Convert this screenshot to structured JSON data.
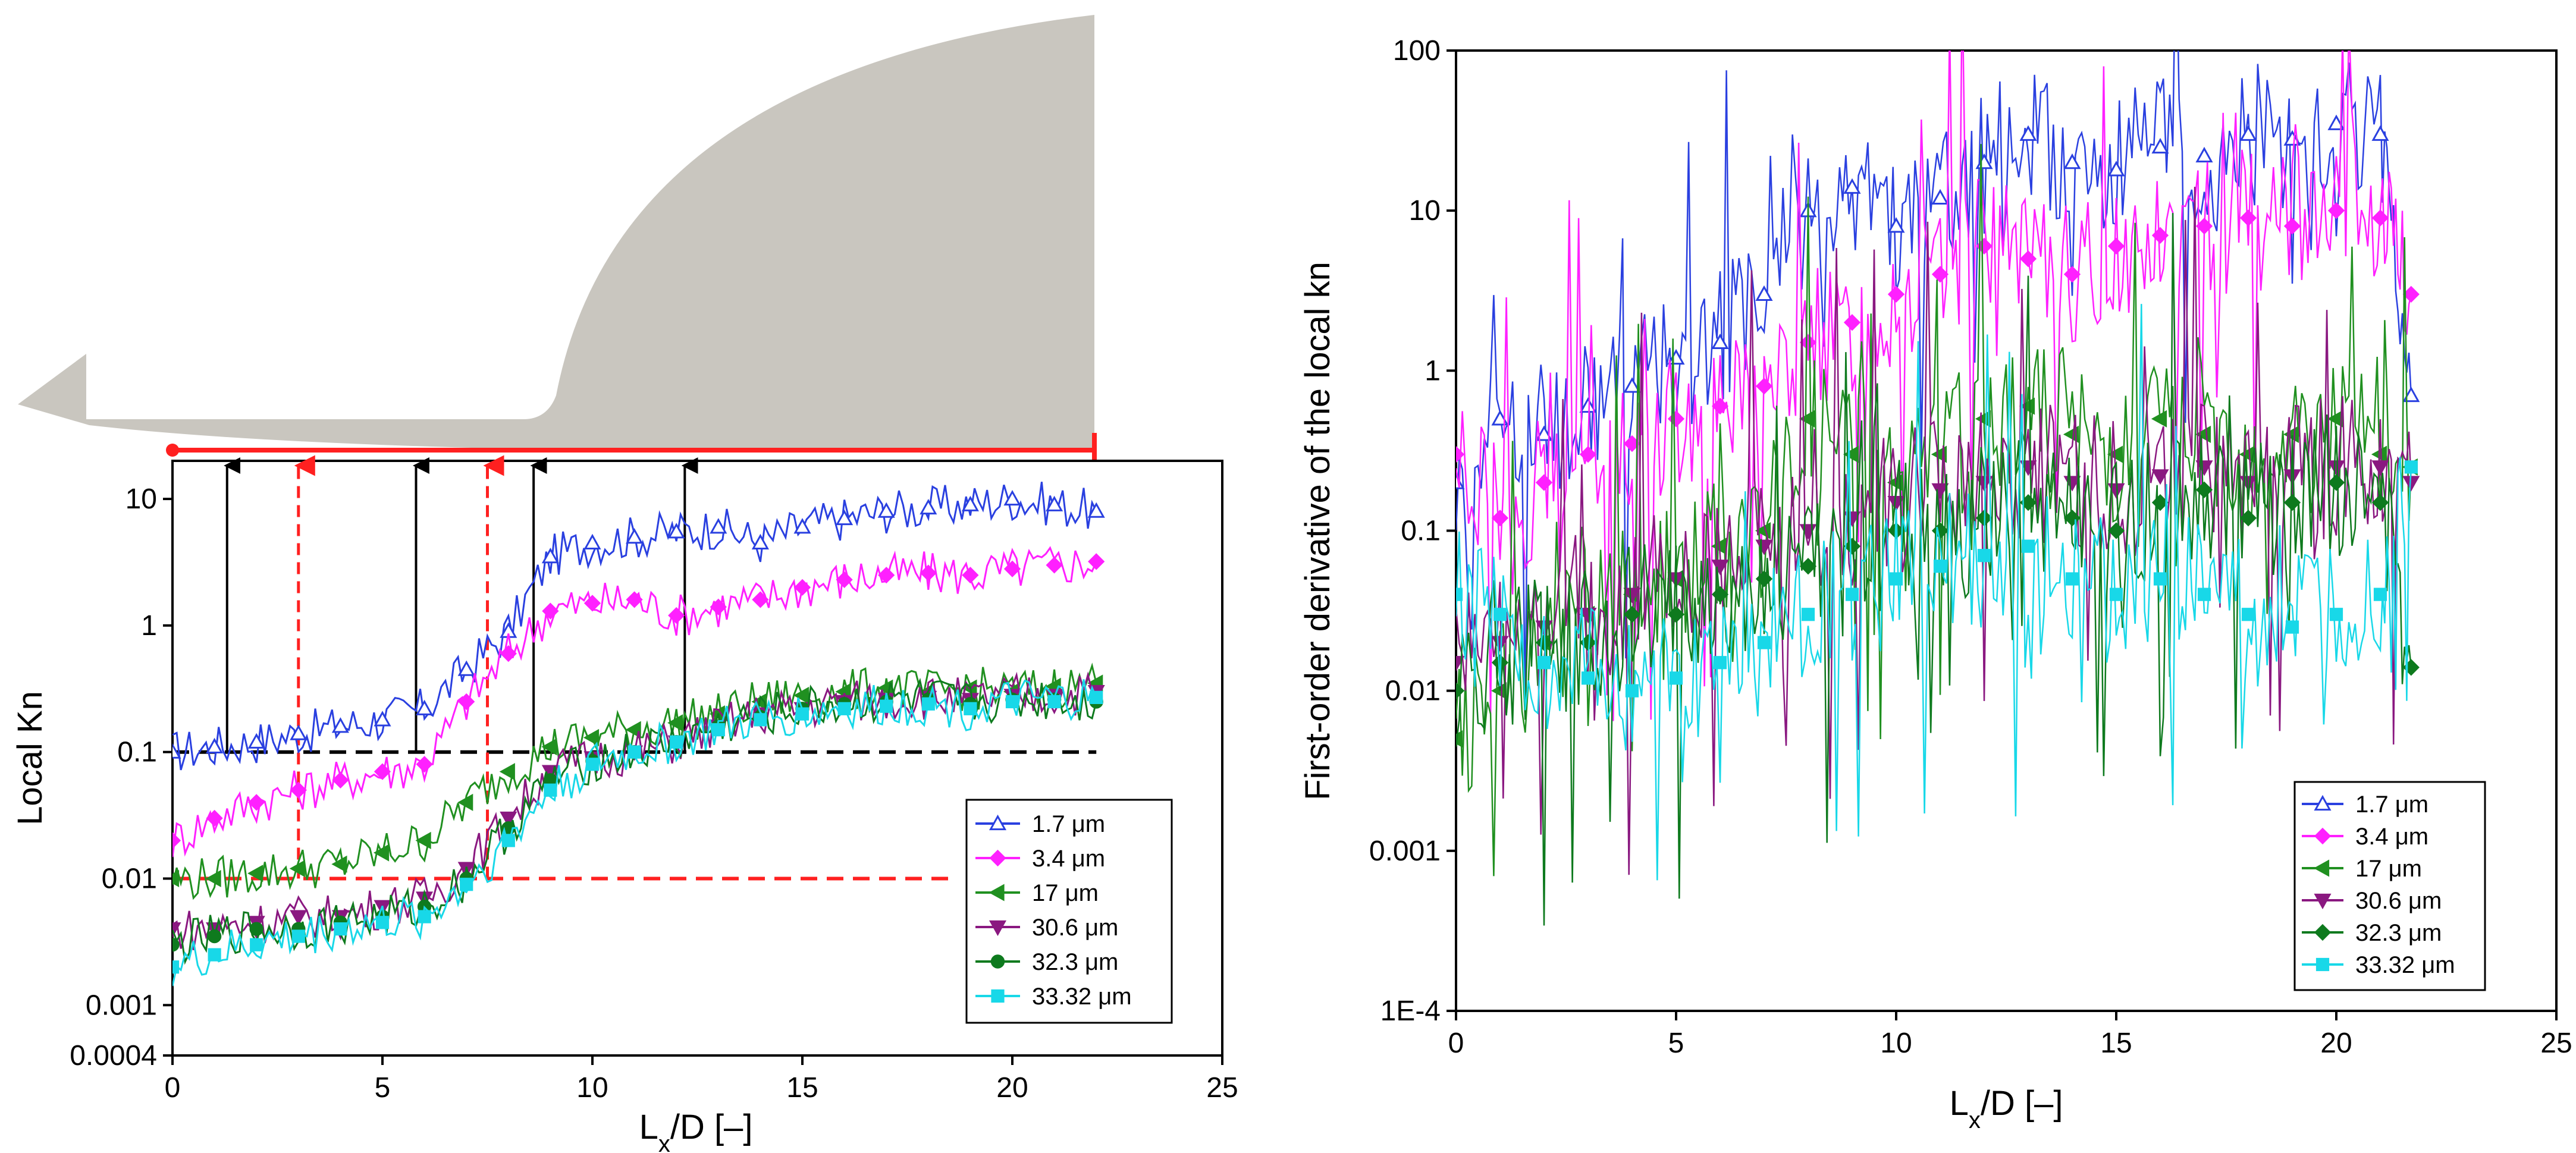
{
  "chart_data": [
    {
      "type": "line",
      "panel": "left",
      "title": "",
      "xlabel_main": "L",
      "xlabel_sub": "x",
      "xlabel_rest": "/D [–]",
      "ylabel": "Local Kn",
      "yscale": "log",
      "xlim": [
        0,
        25
      ],
      "ylim": [
        0.0004,
        20
      ],
      "xticks": [
        "0",
        "5",
        "10",
        "15",
        "20",
        "25"
      ],
      "yticks": [
        "0.0004",
        "0.001",
        "0.01",
        "0.1",
        "1",
        "10"
      ],
      "ytick_values": [
        0.0004,
        0.001,
        0.01,
        0.1,
        1,
        10
      ],
      "reference_lines": [
        {
          "y": 0.1,
          "x0": 0,
          "x1": 22,
          "color": "#000000"
        },
        {
          "y": 0.01,
          "x0": 0,
          "x1": 18.5,
          "color": "#ff2020"
        }
      ],
      "arrows": [
        {
          "x": 1.3,
          "color": "#000000"
        },
        {
          "x": 3.0,
          "color": "#ff2020"
        },
        {
          "x": 5.8,
          "color": "#000000"
        },
        {
          "x": 7.5,
          "color": "#ff2020"
        },
        {
          "x": 8.6,
          "color": "#000000"
        },
        {
          "x": 12.2,
          "color": "#000000"
        }
      ],
      "legend_position": "bottom-right",
      "series": [
        {
          "name": "1.7 μm",
          "color": "#2a40e0",
          "marker": "triangle-up-open",
          "x": [
            0,
            1,
            2,
            3,
            4,
            5,
            6,
            7,
            8,
            9,
            10,
            11,
            12,
            13,
            14,
            15,
            16,
            17,
            18,
            19,
            20,
            21,
            22
          ],
          "y": [
            0.1,
            0.11,
            0.12,
            0.14,
            0.16,
            0.18,
            0.22,
            0.45,
            0.9,
            3.5,
            4.5,
            5,
            5.5,
            6,
            4.5,
            6,
            7,
            8,
            8.5,
            9,
            10,
            9,
            8
          ]
        },
        {
          "name": "3.4 μm",
          "color": "#ff20ff",
          "marker": "diamond",
          "x": [
            0,
            1,
            2,
            3,
            4,
            5,
            6,
            7,
            8,
            9,
            10,
            11,
            12,
            13,
            14,
            15,
            16,
            17,
            18,
            19,
            20,
            21,
            22
          ],
          "y": [
            0.02,
            0.03,
            0.04,
            0.05,
            0.06,
            0.07,
            0.08,
            0.25,
            0.6,
            1.3,
            1.5,
            1.6,
            1.2,
            1.4,
            1.6,
            2,
            2.3,
            2.5,
            2.6,
            2.5,
            2.8,
            3,
            3.2
          ]
        },
        {
          "name": "17 μm",
          "color": "#209020",
          "marker": "triangle-left",
          "x": [
            0,
            1,
            2,
            3,
            4,
            5,
            6,
            7,
            8,
            9,
            10,
            11,
            12,
            13,
            14,
            15,
            16,
            17,
            18,
            19,
            20,
            21,
            22
          ],
          "y": [
            0.01,
            0.01,
            0.011,
            0.012,
            0.013,
            0.016,
            0.02,
            0.04,
            0.07,
            0.11,
            0.13,
            0.15,
            0.17,
            0.2,
            0.25,
            0.28,
            0.3,
            0.32,
            0.3,
            0.32,
            0.3,
            0.33,
            0.35
          ]
        },
        {
          "name": "30.6 μm",
          "color": "#8a1880",
          "marker": "triangle-down",
          "x": [
            0,
            1,
            2,
            3,
            4,
            5,
            6,
            7,
            8,
            9,
            10,
            11,
            12,
            13,
            14,
            15,
            16,
            17,
            18,
            19,
            20,
            21,
            22
          ],
          "y": [
            0.004,
            0.004,
            0.0045,
            0.005,
            0.005,
            0.006,
            0.007,
            0.012,
            0.03,
            0.07,
            0.09,
            0.1,
            0.12,
            0.16,
            0.2,
            0.22,
            0.25,
            0.26,
            0.27,
            0.26,
            0.28,
            0.28,
            0.3
          ]
        },
        {
          "name": "32.3 μm",
          "color": "#0e7a1e",
          "marker": "circle",
          "x": [
            0,
            1,
            2,
            3,
            4,
            5,
            6,
            7,
            8,
            9,
            10,
            11,
            12,
            13,
            14,
            15,
            16,
            17,
            18,
            19,
            20,
            21,
            22
          ],
          "y": [
            0.003,
            0.0035,
            0.004,
            0.004,
            0.0045,
            0.005,
            0.006,
            0.01,
            0.025,
            0.06,
            0.085,
            0.1,
            0.12,
            0.16,
            0.19,
            0.22,
            0.24,
            0.25,
            0.26,
            0.24,
            0.26,
            0.26,
            0.25
          ]
        },
        {
          "name": "33.32 μm",
          "color": "#18d8e8",
          "marker": "square",
          "x": [
            0,
            1,
            2,
            3,
            4,
            5,
            6,
            7,
            8,
            9,
            10,
            11,
            12,
            13,
            14,
            15,
            16,
            17,
            18,
            19,
            20,
            21,
            22
          ],
          "y": [
            0.002,
            0.0025,
            0.003,
            0.0035,
            0.004,
            0.0045,
            0.005,
            0.009,
            0.02,
            0.05,
            0.08,
            0.1,
            0.12,
            0.15,
            0.18,
            0.2,
            0.22,
            0.23,
            0.24,
            0.22,
            0.25,
            0.25,
            0.27
          ]
        }
      ]
    },
    {
      "type": "line",
      "panel": "right",
      "title": "",
      "xlabel_main": "L",
      "xlabel_sub": "x",
      "xlabel_rest": "/D [–]",
      "ylabel": "First-order derivative of the local kn",
      "yscale": "log",
      "xlim": [
        0,
        25
      ],
      "ylim": [
        0.0001,
        100
      ],
      "xticks": [
        "0",
        "5",
        "10",
        "15",
        "20",
        "25"
      ],
      "yticks": [
        "1E-4",
        "0.001",
        "0.01",
        "0.1",
        "1",
        "10",
        "100"
      ],
      "ytick_values": [
        0.0001,
        0.001,
        0.01,
        0.1,
        1,
        10,
        100
      ],
      "legend_position": "bottom-right",
      "series": [
        {
          "name": "1.7 μm",
          "color": "#2a40e0",
          "marker": "triangle-up-open",
          "x": [
            0,
            1,
            2,
            3,
            4,
            5,
            6,
            7,
            8,
            9,
            10,
            11,
            12,
            13,
            14,
            15,
            16,
            17,
            18,
            19,
            20,
            21,
            21.7
          ],
          "y": [
            0.2,
            0.5,
            0.4,
            0.6,
            0.8,
            1.2,
            1.5,
            3,
            10,
            14,
            8,
            12,
            20,
            30,
            20,
            18,
            25,
            22,
            30,
            28,
            35,
            30,
            0.7
          ]
        },
        {
          "name": "3.4 μm",
          "color": "#ff20ff",
          "marker": "diamond",
          "x": [
            0,
            1,
            2,
            3,
            4,
            5,
            6,
            7,
            8,
            9,
            10,
            11,
            12,
            13,
            14,
            15,
            16,
            17,
            18,
            19,
            20,
            21,
            21.7
          ],
          "y": [
            0.3,
            0.12,
            0.2,
            0.3,
            0.35,
            0.5,
            0.6,
            0.8,
            1.5,
            2,
            3,
            4,
            6,
            5,
            4,
            6,
            7,
            8,
            9,
            8,
            10,
            9,
            3
          ]
        },
        {
          "name": "17 μm",
          "color": "#209020",
          "marker": "triangle-left",
          "x": [
            0,
            1,
            2,
            3,
            4,
            5,
            6,
            7,
            8,
            9,
            10,
            11,
            12,
            13,
            14,
            15,
            16,
            17,
            18,
            19,
            20,
            21,
            21.7
          ],
          "y": [
            0.005,
            0.01,
            0.02,
            0.03,
            0.04,
            0.05,
            0.08,
            0.1,
            0.5,
            0.3,
            0.2,
            0.3,
            0.5,
            0.6,
            0.4,
            0.3,
            0.5,
            0.4,
            0.3,
            0.4,
            0.5,
            0.3,
            0.25
          ]
        },
        {
          "name": "30.6 μm",
          "color": "#8a1880",
          "marker": "triangle-down",
          "x": [
            0,
            1,
            2,
            3,
            4,
            5,
            6,
            7,
            8,
            9,
            10,
            11,
            12,
            13,
            14,
            15,
            16,
            17,
            18,
            19,
            20,
            21,
            21.7
          ],
          "y": [
            0.015,
            0.02,
            0.025,
            0.03,
            0.04,
            0.05,
            0.06,
            0.08,
            0.1,
            0.12,
            0.15,
            0.18,
            0.2,
            0.25,
            0.2,
            0.18,
            0.22,
            0.25,
            0.2,
            0.22,
            0.25,
            0.25,
            0.2
          ]
        },
        {
          "name": "32.3 μm",
          "color": "#0e7a1e",
          "marker": "diamond",
          "x": [
            0,
            1,
            2,
            3,
            4,
            5,
            6,
            7,
            8,
            9,
            10,
            11,
            12,
            13,
            14,
            15,
            16,
            17,
            18,
            19,
            20,
            21,
            21.7
          ],
          "y": [
            0.01,
            0.015,
            0.02,
            0.02,
            0.03,
            0.03,
            0.04,
            0.05,
            0.06,
            0.08,
            0.1,
            0.1,
            0.12,
            0.15,
            0.12,
            0.1,
            0.15,
            0.18,
            0.12,
            0.15,
            0.2,
            0.15,
            0.014
          ]
        },
        {
          "name": "33.32 μm",
          "color": "#18d8e8",
          "marker": "square",
          "x": [
            0,
            1,
            2,
            3,
            4,
            5,
            6,
            7,
            8,
            9,
            10,
            11,
            12,
            13,
            14,
            15,
            16,
            17,
            18,
            19,
            20,
            21,
            21.7
          ],
          "y": [
            0.04,
            0.03,
            0.015,
            0.012,
            0.01,
            0.012,
            0.015,
            0.02,
            0.03,
            0.04,
            0.05,
            0.06,
            0.07,
            0.08,
            0.05,
            0.04,
            0.05,
            0.04,
            0.03,
            0.025,
            0.03,
            0.04,
            0.25
          ]
        }
      ]
    }
  ]
}
